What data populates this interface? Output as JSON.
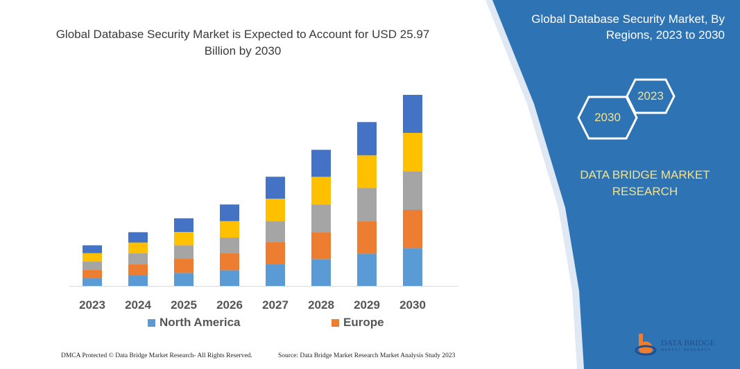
{
  "header": {
    "title": "Global Database Security Market is Expected to Account for USD 25.97 Billion by 2030"
  },
  "panel": {
    "title": "Global Database Security Market, By Regions, 2023 to 2030",
    "hex_start": "2023",
    "hex_end": "2030",
    "brand": "DATA BRIDGE MARKET RESEARCH",
    "logo_text": "DATA BRIDGE",
    "logo_sub": "MARKET RESEARCH"
  },
  "footer": {
    "left": "DMCA Protected © Data Bridge Market Research- All Rights Reserved.",
    "right": "Source: Data Bridge Market Research Market Analysis Study 2023"
  },
  "colors": {
    "panel": "#2e74b5",
    "accent_text": "#f3e28f"
  },
  "chart_data": {
    "type": "bar",
    "stacked": true,
    "title": "Global Database Security Market is Expected to Account for USD 25.97 Billion by 2030",
    "xlabel": "",
    "ylabel": "",
    "categories": [
      "2023",
      "2024",
      "2025",
      "2026",
      "2027",
      "2028",
      "2029",
      "2030"
    ],
    "ylim": [
      0,
      25.97
    ],
    "grid": false,
    "legend_position": "bottom",
    "series": [
      {
        "name": "North America",
        "color": "#5b9bd5",
        "values": [
          1.03,
          1.41,
          1.76,
          2.13,
          2.92,
          3.64,
          4.39,
          5.14
        ]
      },
      {
        "name": "Europe",
        "color": "#ed7d31",
        "values": [
          1.13,
          1.54,
          1.91,
          2.29,
          3.01,
          3.67,
          4.42,
          5.21
        ]
      },
      {
        "color": "#a5a5a5",
        "values": [
          1.13,
          1.47,
          1.85,
          2.16,
          2.89,
          3.76,
          4.52,
          5.24
        ]
      },
      {
        "color": "#ffc000",
        "values": [
          1.16,
          1.47,
          1.82,
          2.23,
          3.04,
          3.76,
          4.42,
          5.21
        ]
      },
      {
        "color": "#4472c4",
        "values": [
          1.07,
          1.41,
          1.85,
          2.26,
          2.98,
          3.67,
          4.52,
          5.17
        ]
      }
    ]
  }
}
